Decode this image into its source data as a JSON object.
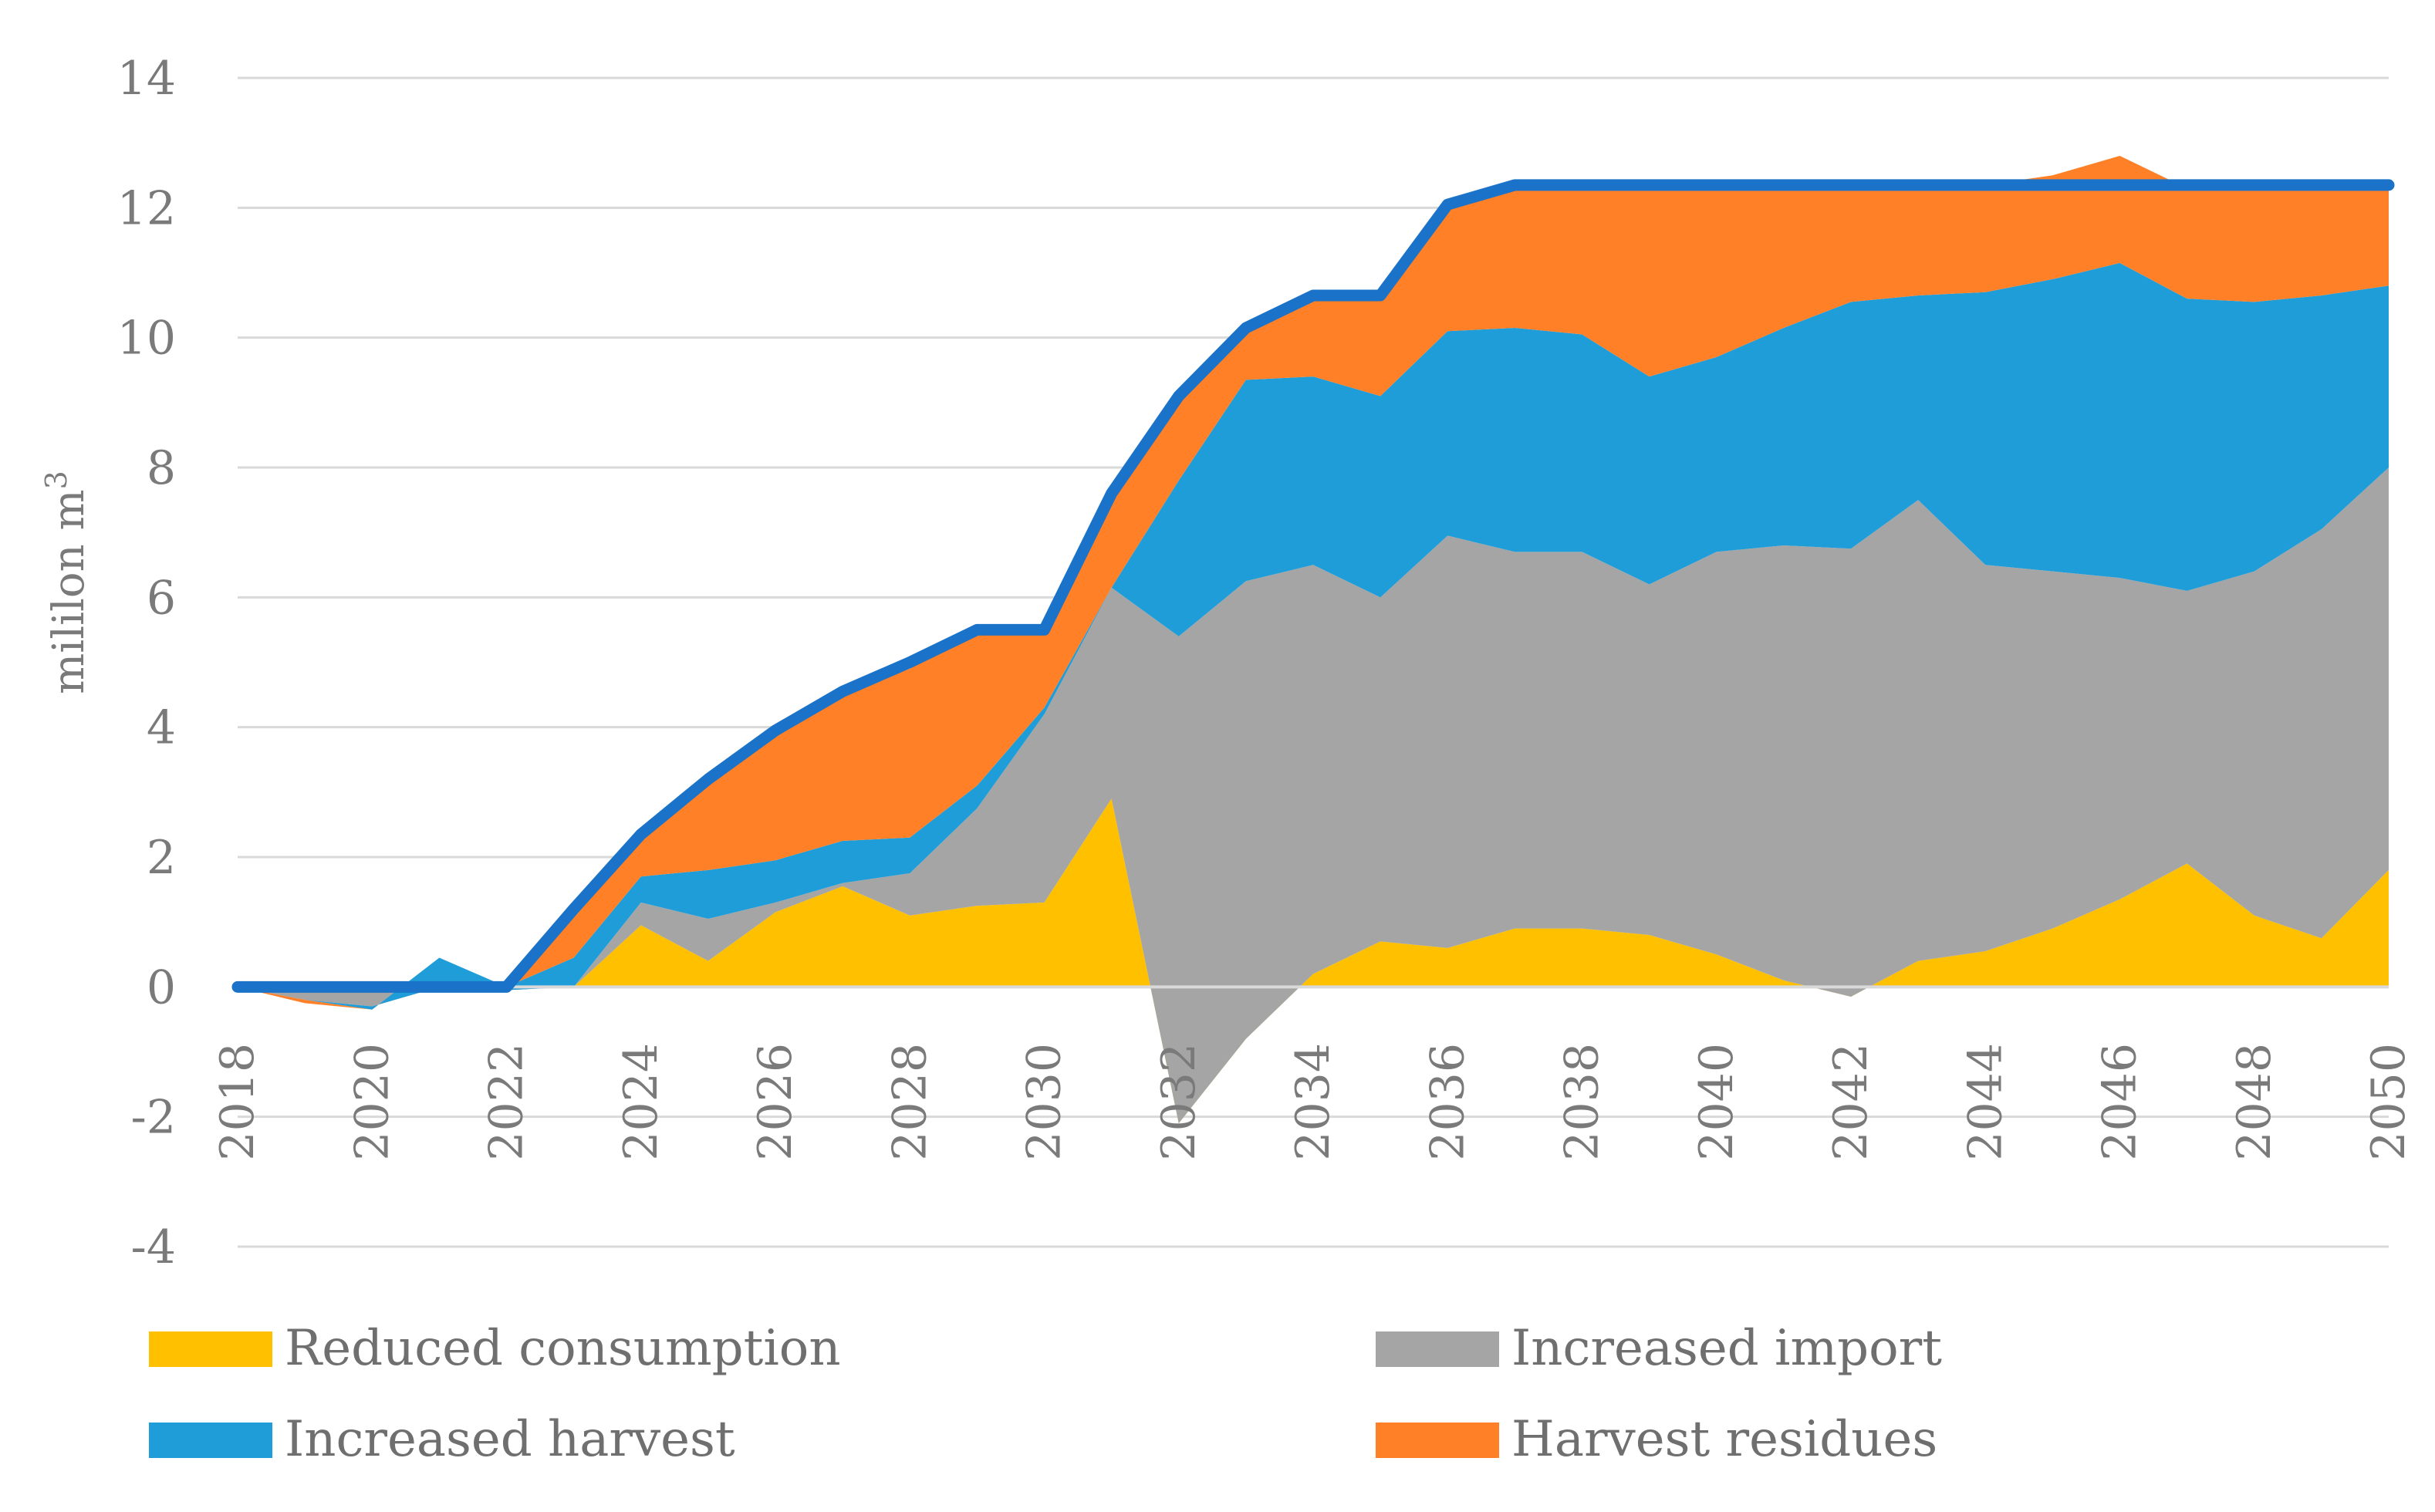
{
  "chart_data": {
    "type": "area",
    "title": "",
    "xlabel": "",
    "ylabel": "mililon m",
    "ylabel_sup": "3",
    "ylim": [
      -4,
      14
    ],
    "yticks": [
      -4,
      -2,
      0,
      2,
      4,
      6,
      8,
      10,
      12,
      14
    ],
    "xlim": [
      2018,
      2050
    ],
    "xticks": [
      2018,
      2020,
      2022,
      2024,
      2026,
      2028,
      2030,
      2032,
      2034,
      2036,
      2038,
      2040,
      2042,
      2044,
      2046,
      2048,
      2050
    ],
    "grid": true,
    "legend_position": "bottom",
    "x": [
      2018,
      2019,
      2020,
      2021,
      2022,
      2023,
      2024,
      2025,
      2026,
      2027,
      2028,
      2029,
      2030,
      2031,
      2032,
      2033,
      2034,
      2035,
      2036,
      2037,
      2038,
      2039,
      2040,
      2041,
      2042,
      2043,
      2044,
      2045,
      2046,
      2047,
      2048,
      2049,
      2050
    ],
    "series": [
      {
        "name": "Reduced consumption",
        "color": "#FFC000",
        "values": [
          0,
          0,
          0,
          0,
          0,
          0,
          0.95,
          0.4,
          1.15,
          1.55,
          1.1,
          1.25,
          1.3,
          2.9,
          -2.1,
          -0.8,
          0.2,
          0.7,
          0.6,
          0.9,
          0.9,
          0.8,
          0.5,
          0.1,
          -0.15,
          0.4,
          0.55,
          0.9,
          1.35,
          1.9,
          1.1,
          0.75,
          1.8
        ]
      },
      {
        "name": "Increased import",
        "color": "#A5A5A5",
        "values": [
          0,
          -0.2,
          -0.3,
          0,
          -0.05,
          0,
          0.35,
          0.65,
          0.15,
          0.05,
          0.65,
          1.5,
          2.9,
          3.25,
          7.5,
          7.05,
          6.3,
          5.3,
          6.35,
          5.8,
          5.8,
          5.4,
          6.2,
          6.7,
          6.9,
          7.1,
          5.95,
          5.5,
          4.95,
          4.2,
          5.3,
          6.3,
          6.2
        ]
      },
      {
        "name": "Increased harvest",
        "color": "#1F9DD9",
        "values": [
          0,
          0,
          -0.05,
          0.45,
          0.05,
          0.45,
          0.4,
          0.75,
          0.65,
          0.65,
          0.55,
          0.35,
          0.1,
          0,
          2.4,
          3.1,
          2.9,
          3.1,
          3.15,
          3.45,
          3.35,
          3.2,
          3.0,
          3.35,
          3.8,
          3.15,
          4.2,
          4.5,
          4.85,
          4.5,
          4.15,
          3.6,
          2.8
        ]
      },
      {
        "name": "Harvest residues",
        "color": "#FF8026",
        "values": [
          0,
          -0.05,
          0,
          0,
          0,
          0.75,
          0.65,
          1.4,
          1.95,
          2.25,
          2.6,
          2.4,
          1.2,
          1.45,
          1.2,
          0.8,
          1.2,
          1.5,
          1.9,
          2.2,
          2.3,
          2.95,
          2.6,
          2.2,
          1.8,
          1.7,
          1.65,
          1.6,
          1.65,
          1.7,
          1.8,
          1.65,
          1.5
        ]
      }
    ],
    "total_line": {
      "color": "#1A73C8",
      "values": [
        0,
        0,
        0,
        0,
        0,
        1.2,
        2.35,
        3.2,
        3.95,
        4.55,
        5.0,
        5.5,
        5.5,
        7.6,
        9.1,
        10.15,
        10.65,
        10.65,
        12.05,
        12.35,
        12.35,
        12.35,
        12.35,
        12.35,
        12.35,
        12.35,
        12.35,
        12.35,
        12.35,
        12.35,
        12.35,
        12.35,
        12.35
      ]
    },
    "legend": [
      {
        "label": "Reduced consumption",
        "color": "#FFC000"
      },
      {
        "label": "Increased import",
        "color": "#A5A5A5"
      },
      {
        "label": "Increased harvest",
        "color": "#1F9DD9"
      },
      {
        "label": "Harvest residues",
        "color": "#FF8026"
      }
    ]
  }
}
